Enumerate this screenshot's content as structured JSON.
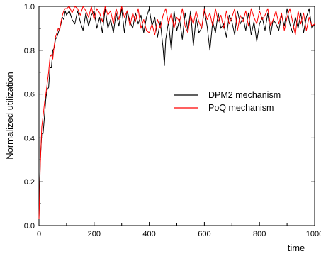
{
  "chart_data": {
    "type": "line",
    "title": "",
    "xlabel": "time",
    "ylabel": "Normalized utilization",
    "xlim": [
      0,
      1000
    ],
    "ylim": [
      0.0,
      1.0
    ],
    "xticks": [
      0,
      200,
      400,
      600,
      800,
      1000
    ],
    "yticks": [
      0.0,
      0.2,
      0.4,
      0.6,
      0.8,
      1.0
    ],
    "xtick_labels": [
      "0",
      "200",
      "400",
      "600",
      "800",
      "1000"
    ],
    "ytick_labels": [
      "0.0",
      "0.2",
      "0.4",
      "0.6",
      "0.8",
      "1.0"
    ],
    "grid": false,
    "legend_position": "center-right",
    "series": [
      {
        "name": "DPM2 mechanism",
        "color": "#000000",
        "x": [
          0,
          5,
          10,
          15,
          20,
          25,
          30,
          35,
          40,
          45,
          50,
          55,
          60,
          65,
          70,
          75,
          80,
          85,
          90,
          95,
          100,
          110,
          120,
          130,
          140,
          150,
          160,
          170,
          180,
          190,
          200,
          210,
          220,
          230,
          240,
          250,
          260,
          270,
          280,
          290,
          300,
          310,
          320,
          330,
          340,
          350,
          360,
          370,
          380,
          390,
          400,
          410,
          420,
          430,
          440,
          450,
          455,
          460,
          470,
          480,
          490,
          500,
          510,
          520,
          530,
          540,
          550,
          560,
          570,
          580,
          590,
          600,
          610,
          620,
          630,
          640,
          650,
          660,
          670,
          680,
          690,
          700,
          710,
          720,
          730,
          740,
          750,
          760,
          770,
          780,
          790,
          800,
          810,
          820,
          830,
          840,
          850,
          860,
          870,
          880,
          890,
          900,
          910,
          920,
          930,
          940,
          950,
          960,
          970,
          980,
          990,
          1000
        ],
        "values": [
          0.03,
          0.3,
          0.42,
          0.42,
          0.5,
          0.58,
          0.62,
          0.63,
          0.72,
          0.72,
          0.8,
          0.81,
          0.85,
          0.86,
          0.88,
          0.9,
          0.92,
          0.95,
          0.94,
          0.98,
          0.96,
          0.98,
          0.94,
          0.92,
          0.98,
          0.93,
          0.89,
          0.97,
          0.91,
          0.96,
          0.98,
          0.9,
          0.95,
          0.88,
          0.99,
          0.9,
          0.94,
          0.88,
          0.97,
          0.91,
          0.99,
          0.88,
          0.98,
          0.93,
          0.9,
          0.97,
          0.92,
          0.96,
          0.88,
          0.95,
          0.99,
          0.91,
          0.95,
          0.86,
          0.93,
          0.81,
          0.73,
          0.85,
          0.93,
          0.8,
          0.98,
          0.89,
          0.94,
          0.85,
          0.97,
          0.89,
          0.98,
          0.82,
          0.95,
          0.88,
          0.9,
          0.98,
          0.91,
          0.8,
          0.93,
          0.88,
          0.97,
          0.9,
          0.92,
          0.86,
          0.96,
          0.93,
          0.87,
          0.98,
          0.92,
          0.95,
          0.89,
          0.97,
          0.87,
          0.93,
          0.84,
          0.92,
          0.95,
          0.89,
          0.97,
          0.87,
          0.94,
          0.92,
          0.89,
          0.96,
          0.91,
          0.99,
          0.92,
          0.88,
          0.95,
          0.9,
          0.97,
          0.88,
          0.95,
          0.99,
          0.9,
          0.92
        ]
      },
      {
        "name": "PoQ mechanism",
        "color": "#ff0000",
        "x": [
          0,
          5,
          10,
          15,
          20,
          25,
          30,
          35,
          40,
          45,
          50,
          55,
          60,
          65,
          70,
          75,
          80,
          85,
          90,
          95,
          100,
          110,
          120,
          130,
          140,
          150,
          160,
          170,
          180,
          190,
          200,
          210,
          220,
          230,
          240,
          250,
          260,
          270,
          280,
          290,
          300,
          310,
          320,
          330,
          340,
          350,
          360,
          370,
          380,
          390,
          400,
          410,
          420,
          430,
          440,
          450,
          460,
          470,
          480,
          490,
          500,
          510,
          520,
          530,
          540,
          550,
          560,
          570,
          580,
          590,
          600,
          610,
          620,
          630,
          640,
          650,
          660,
          670,
          680,
          690,
          700,
          710,
          720,
          730,
          740,
          750,
          760,
          770,
          780,
          790,
          800,
          810,
          820,
          830,
          840,
          850,
          860,
          870,
          880,
          890,
          900,
          910,
          920,
          930,
          940,
          950,
          960,
          970,
          980,
          990,
          1000
        ],
        "values": [
          0.03,
          0.28,
          0.45,
          0.5,
          0.56,
          0.6,
          0.65,
          0.7,
          0.77,
          0.78,
          0.76,
          0.82,
          0.86,
          0.88,
          0.9,
          0.89,
          0.93,
          0.96,
          0.98,
          0.99,
          0.99,
          1.0,
          0.97,
          1.0,
          0.99,
          0.96,
          1.0,
          0.98,
          0.95,
          1.0,
          0.94,
          0.99,
          0.97,
          0.93,
          1.0,
          0.96,
          0.98,
          0.92,
          0.99,
          0.94,
          1.0,
          0.95,
          0.98,
          0.91,
          0.97,
          0.93,
          0.99,
          0.9,
          0.94,
          0.89,
          0.88,
          0.92,
          0.87,
          0.94,
          0.9,
          0.96,
          0.99,
          0.92,
          0.97,
          0.9,
          0.95,
          0.93,
          0.99,
          0.91,
          0.88,
          0.96,
          0.92,
          0.98,
          0.93,
          0.9,
          0.99,
          0.94,
          0.97,
          0.91,
          0.99,
          0.93,
          0.96,
          0.9,
          0.98,
          0.92,
          0.95,
          0.99,
          0.89,
          0.96,
          0.93,
          0.98,
          0.91,
          0.99,
          0.95,
          0.92,
          0.98,
          0.94,
          0.96,
          0.99,
          0.91,
          0.94,
          0.98,
          0.92,
          0.97,
          0.89,
          0.95,
          0.99,
          0.93,
          0.87,
          0.98,
          0.92,
          0.97,
          0.89,
          0.95,
          0.91,
          0.92
        ]
      }
    ]
  }
}
